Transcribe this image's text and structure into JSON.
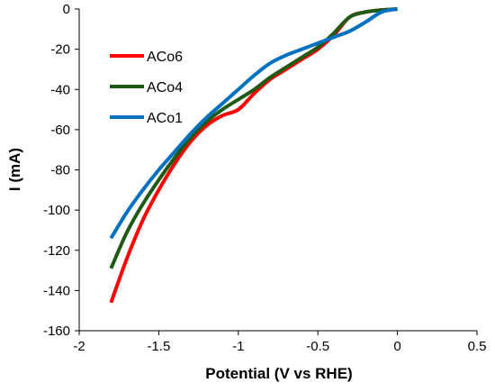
{
  "chart_data": {
    "type": "line",
    "title": "",
    "xlabel": "Potential (V vs RHE)",
    "ylabel": "I (mA)",
    "xlim": [
      -2,
      0.5
    ],
    "ylim": [
      -160,
      0
    ],
    "xticks": [
      -2,
      -1.5,
      -1,
      -0.5,
      0,
      0.5
    ],
    "yticks": [
      0,
      -20,
      -40,
      -60,
      -80,
      -100,
      -120,
      -140,
      -160
    ],
    "xtick_labels": [
      "-2",
      "-1.5",
      "-1",
      "-0.5",
      "0",
      "0.5"
    ],
    "ytick_labels": [
      "0",
      "-20",
      "-40",
      "-60",
      "-80",
      "-100",
      "-120",
      "-140",
      "-160"
    ],
    "grid": false,
    "legend_position": "top-left",
    "series": [
      {
        "name": "ACo6",
        "color": "#ff0000",
        "points": [
          [
            -1.8,
            -146
          ],
          [
            -1.7,
            -124
          ],
          [
            -1.6,
            -105
          ],
          [
            -1.5,
            -90
          ],
          [
            -1.4,
            -77
          ],
          [
            -1.3,
            -66
          ],
          [
            -1.2,
            -58
          ],
          [
            -1.1,
            -53
          ],
          [
            -1.0,
            -50
          ],
          [
            -0.9,
            -42
          ],
          [
            -0.8,
            -35
          ],
          [
            -0.7,
            -30
          ],
          [
            -0.6,
            -25
          ],
          [
            -0.5,
            -20
          ],
          [
            -0.4,
            -13
          ],
          [
            -0.3,
            -4
          ],
          [
            -0.2,
            -1.5
          ],
          [
            -0.1,
            -0.5
          ],
          [
            0.0,
            0
          ]
        ]
      },
      {
        "name": "ACo4",
        "color": "#1e5a14",
        "points": [
          [
            -1.8,
            -129
          ],
          [
            -1.7,
            -111
          ],
          [
            -1.6,
            -97
          ],
          [
            -1.5,
            -85
          ],
          [
            -1.4,
            -74
          ],
          [
            -1.3,
            -64
          ],
          [
            -1.2,
            -56
          ],
          [
            -1.1,
            -50
          ],
          [
            -1.0,
            -45
          ],
          [
            -0.9,
            -40
          ],
          [
            -0.8,
            -34
          ],
          [
            -0.7,
            -29
          ],
          [
            -0.6,
            -24
          ],
          [
            -0.5,
            -19
          ],
          [
            -0.4,
            -12
          ],
          [
            -0.3,
            -4
          ],
          [
            -0.2,
            -1.5
          ],
          [
            -0.1,
            -0.5
          ],
          [
            0.0,
            0
          ]
        ]
      },
      {
        "name": "ACo1",
        "color": "#0070c0",
        "points": [
          [
            -1.8,
            -114
          ],
          [
            -1.7,
            -101
          ],
          [
            -1.6,
            -90
          ],
          [
            -1.5,
            -80
          ],
          [
            -1.4,
            -71
          ],
          [
            -1.3,
            -62
          ],
          [
            -1.2,
            -54
          ],
          [
            -1.1,
            -47
          ],
          [
            -1.0,
            -40
          ],
          [
            -0.9,
            -33
          ],
          [
            -0.8,
            -27
          ],
          [
            -0.7,
            -23
          ],
          [
            -0.6,
            -20
          ],
          [
            -0.5,
            -17
          ],
          [
            -0.4,
            -14
          ],
          [
            -0.3,
            -11
          ],
          [
            -0.2,
            -6.5
          ],
          [
            -0.1,
            -1.5
          ],
          [
            0.0,
            0
          ]
        ]
      }
    ]
  }
}
